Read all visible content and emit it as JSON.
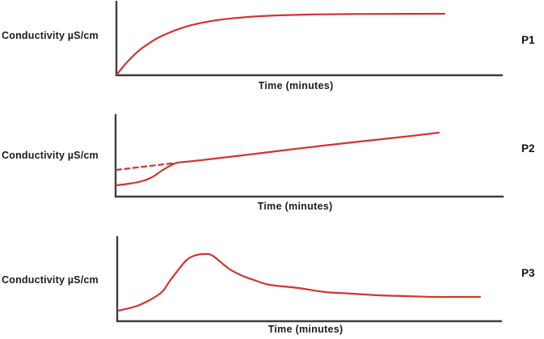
{
  "figure": {
    "background": "#ffffff",
    "text_color": "#1c1c1c"
  },
  "chart_data": [
    {
      "panel_label": "P1",
      "type": "line",
      "title": "",
      "xlabel": "Time (minutes)",
      "ylabel": "Conductivity µS/cm",
      "line_color": "#d2342f",
      "axis_color": "#3d3d3d",
      "grid": false,
      "legend": "none",
      "x_range": [
        0,
        100
      ],
      "y_range": [
        0,
        100
      ],
      "description": "Conductivity rises steeply from zero then plateaus at a constant maximum (saturation curve)",
      "series": [
        {
          "name": "conductivity",
          "style": "solid",
          "points": [
            [
              0.2,
              1.6
            ],
            [
              2.5,
              16.5
            ],
            [
              5.4,
              31.9
            ],
            [
              8.4,
              43.7
            ],
            [
              11.7,
              53.9
            ],
            [
              18,
              66.8
            ],
            [
              24.3,
              74.2
            ],
            [
              30.5,
              78.4
            ],
            [
              36.8,
              81
            ],
            [
              45.2,
              82.8
            ],
            [
              53.6,
              83.7
            ],
            [
              64,
              84.1
            ],
            [
              74.5,
              84.3
            ],
            [
              84.9,
              84.4
            ]
          ]
        }
      ]
    },
    {
      "panel_label": "P2",
      "type": "line",
      "title": "",
      "xlabel": "Time (minutes)",
      "ylabel": "Conductivity µS/cm",
      "line_color": "#d2342f",
      "axis_color": "#3d3d3d",
      "grid": false,
      "legend": "none",
      "x_range": [
        0,
        100
      ],
      "y_range": [
        0,
        100
      ],
      "description": "Conductivity rises slowly, steps up in an S-bend, then increases steadily along a straight line; a dashed line extrapolates the straight portion back to the y-axis",
      "series": [
        {
          "name": "conductivity",
          "style": "solid",
          "points": [
            [
              0.2,
              13.7
            ],
            [
              3.5,
              15.7
            ],
            [
              6.7,
              18.6
            ],
            [
              9.4,
              23.5
            ],
            [
              11.9,
              31.4
            ],
            [
              14,
              37.3
            ],
            [
              16,
              41.2
            ],
            [
              20.2,
              43.1
            ],
            [
              32.7,
              50
            ],
            [
              53.5,
              61.8
            ],
            [
              74.4,
              72.5
            ],
            [
              83.3,
              77.5
            ]
          ]
        },
        {
          "name": "extrapolation",
          "style": "dashed",
          "points": [
            [
              0.2,
              32.4
            ],
            [
              15.2,
              40.7
            ]
          ]
        }
      ]
    },
    {
      "panel_label": "P3",
      "type": "line",
      "title": "",
      "xlabel": "Time (minutes)",
      "ylabel": "Conductivity µS/cm",
      "line_color": "#d2342f",
      "axis_color": "#3d3d3d",
      "grid": false,
      "legend": "none",
      "x_range": [
        0,
        100
      ],
      "y_range": [
        0,
        100
      ],
      "description": "Conductivity rises to a rounded peak then decays to a plateau above the starting value",
      "series": [
        {
          "name": "conductivity",
          "style": "solid",
          "points": [
            [
              0.2,
              12.4
            ],
            [
              4.6,
              17.1
            ],
            [
              8,
              23.8
            ],
            [
              11.6,
              34.3
            ],
            [
              13.7,
              47.6
            ],
            [
              15.8,
              60
            ],
            [
              17.9,
              71.4
            ],
            [
              20,
              77.1
            ],
            [
              22.7,
              79
            ],
            [
              24.8,
              77.1
            ],
            [
              29,
              61.9
            ],
            [
              32.6,
              53.3
            ],
            [
              36.1,
              47.6
            ],
            [
              39.5,
              42.9
            ],
            [
              47.1,
              39
            ],
            [
              54.2,
              34.3
            ],
            [
              61.1,
              32.4
            ],
            [
              68.1,
              30.5
            ],
            [
              75.2,
              29.5
            ],
            [
              82.1,
              28.6
            ],
            [
              89.1,
              28.6
            ],
            [
              94.3,
              28.6
            ]
          ]
        }
      ]
    }
  ]
}
